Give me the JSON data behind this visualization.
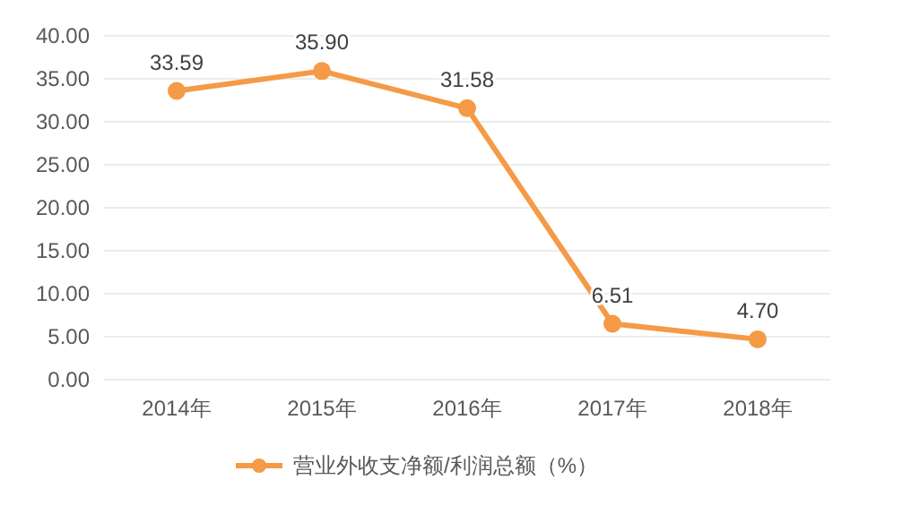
{
  "chart_data": {
    "type": "line",
    "categories": [
      "2014年",
      "2015年",
      "2016年",
      "2017年",
      "2018年"
    ],
    "series": [
      {
        "name": "营业外收支净额/利润总额（%）",
        "color": "#f59a46",
        "values": [
          33.59,
          35.9,
          31.58,
          6.51,
          4.7
        ]
      }
    ],
    "value_labels": [
      "33.59",
      "35.90",
      "31.58",
      "6.51",
      "4.70"
    ],
    "ylim": [
      0,
      40
    ],
    "yticks": [
      {
        "value": 0,
        "label": "0.00"
      },
      {
        "value": 5,
        "label": "5.00"
      },
      {
        "value": 10,
        "label": "10.00"
      },
      {
        "value": 15,
        "label": "15.00"
      },
      {
        "value": 20,
        "label": "20.00"
      },
      {
        "value": 25,
        "label": "25.00"
      },
      {
        "value": 30,
        "label": "30.00"
      },
      {
        "value": 35,
        "label": "35.00"
      },
      {
        "value": 40,
        "label": "40.00"
      }
    ],
    "grid": "y",
    "legend": "bottom",
    "marker": "circle",
    "line_style": "solid"
  }
}
